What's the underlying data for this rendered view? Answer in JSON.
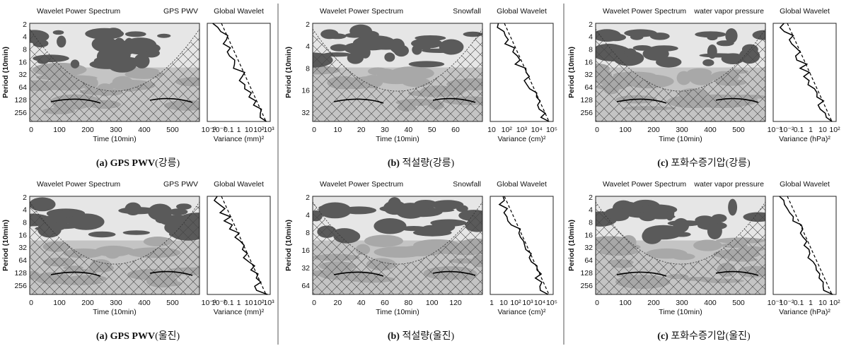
{
  "panels": [
    {
      "title_left": "Wavelet Power Spectrum",
      "title_right": "GPS PWV",
      "global_title": "Global Wavelet",
      "ylabel": "Period (10min)",
      "yticks": [
        "2",
        "4",
        "8",
        "16",
        "32",
        "64",
        "128",
        "256"
      ],
      "xticks": [
        "0",
        "100",
        "200",
        "300",
        "400",
        "500"
      ],
      "xlabel": "Time (10min)",
      "gw_xticks": [
        "10⁻³",
        "10⁻²",
        "0.1",
        "1",
        "10",
        "10²",
        "10³"
      ],
      "gw_xlabel": "Variance (mm)²",
      "caption_bold": "(a) GPS PWV",
      "caption_rest": "(강릉)"
    },
    {
      "title_left": "Wavelet Power Spectrum",
      "title_right": "Snowfall",
      "global_title": "Global Wavelet",
      "ylabel": "Period (10min)",
      "yticks": [
        "2",
        "4",
        "8",
        "16",
        "32"
      ],
      "xticks": [
        "0",
        "10",
        "20",
        "30",
        "40",
        "50",
        "60"
      ],
      "xlabel": "Time (10min)",
      "gw_xticks": [
        "10",
        "10²",
        "10³",
        "10⁴",
        "10⁵"
      ],
      "gw_xlabel": "Variance (cm)²",
      "caption_bold": "(b)",
      "caption_rest": " 적설량(강릉)"
    },
    {
      "title_left": "Wavelet Power Spectrum",
      "title_right": "water vapor pressure",
      "global_title": "Global Wavelet",
      "ylabel": "Period (10min)",
      "yticks": [
        "2",
        "4",
        "8",
        "16",
        "32",
        "64",
        "128",
        "256"
      ],
      "xticks": [
        "0",
        "100",
        "200",
        "300",
        "400",
        "500"
      ],
      "xlabel": "Time (10min)",
      "gw_xticks": [
        "10⁻³",
        "10⁻²",
        "0.1",
        "1",
        "10",
        "10²"
      ],
      "gw_xlabel": "Variance (hPa)²",
      "caption_bold": "(c)",
      "caption_rest": " 포화수증기압(강릉)"
    },
    {
      "title_left": "Wavelet Power Spectrum",
      "title_right": "GPS PWV",
      "global_title": "Global Wavelet",
      "ylabel": "Period (10min)",
      "yticks": [
        "2",
        "4",
        "8",
        "16",
        "32",
        "64",
        "128",
        "256"
      ],
      "xticks": [
        "0",
        "100",
        "200",
        "300",
        "400",
        "500"
      ],
      "xlabel": "Time (10min)",
      "gw_xticks": [
        "10⁻³",
        "10⁻²",
        "0.1",
        "1",
        "10",
        "10²",
        "10³"
      ],
      "gw_xlabel": "Variance (mm)²",
      "caption_bold": "(a) GPS PWV",
      "caption_rest": "(울진)"
    },
    {
      "title_left": "Wavelet Power Spectrum",
      "title_right": "Snowfall",
      "global_title": "Global Wavelet",
      "ylabel": "Period (10min)",
      "yticks": [
        "2",
        "4",
        "8",
        "16",
        "32",
        "64"
      ],
      "xticks": [
        "0",
        "20",
        "40",
        "60",
        "80",
        "100",
        "120"
      ],
      "xlabel": "Time (10min)",
      "gw_xticks": [
        "1",
        "10",
        "10²",
        "10³",
        "10⁴",
        "10⁵"
      ],
      "gw_xlabel": "Variance (cm)²",
      "caption_bold": "(b)",
      "caption_rest": " 적설량(울진)"
    },
    {
      "title_left": "Wavelet Power Spectrum",
      "title_right": "water vapor pressure",
      "global_title": "Global Wavelet",
      "ylabel": "Period (10min)",
      "yticks": [
        "2",
        "4",
        "8",
        "16",
        "32",
        "64",
        "128",
        "256"
      ],
      "xticks": [
        "0",
        "100",
        "200",
        "300",
        "400",
        "500"
      ],
      "xlabel": "Time (10min)",
      "gw_xticks": [
        "10⁻³",
        "10⁻²",
        "0.1",
        "1",
        "10",
        "10²"
      ],
      "gw_xlabel": "Variance (hPa)²",
      "caption_bold": "(c)",
      "caption_rest": " 포화수증기압(울진)"
    }
  ]
}
